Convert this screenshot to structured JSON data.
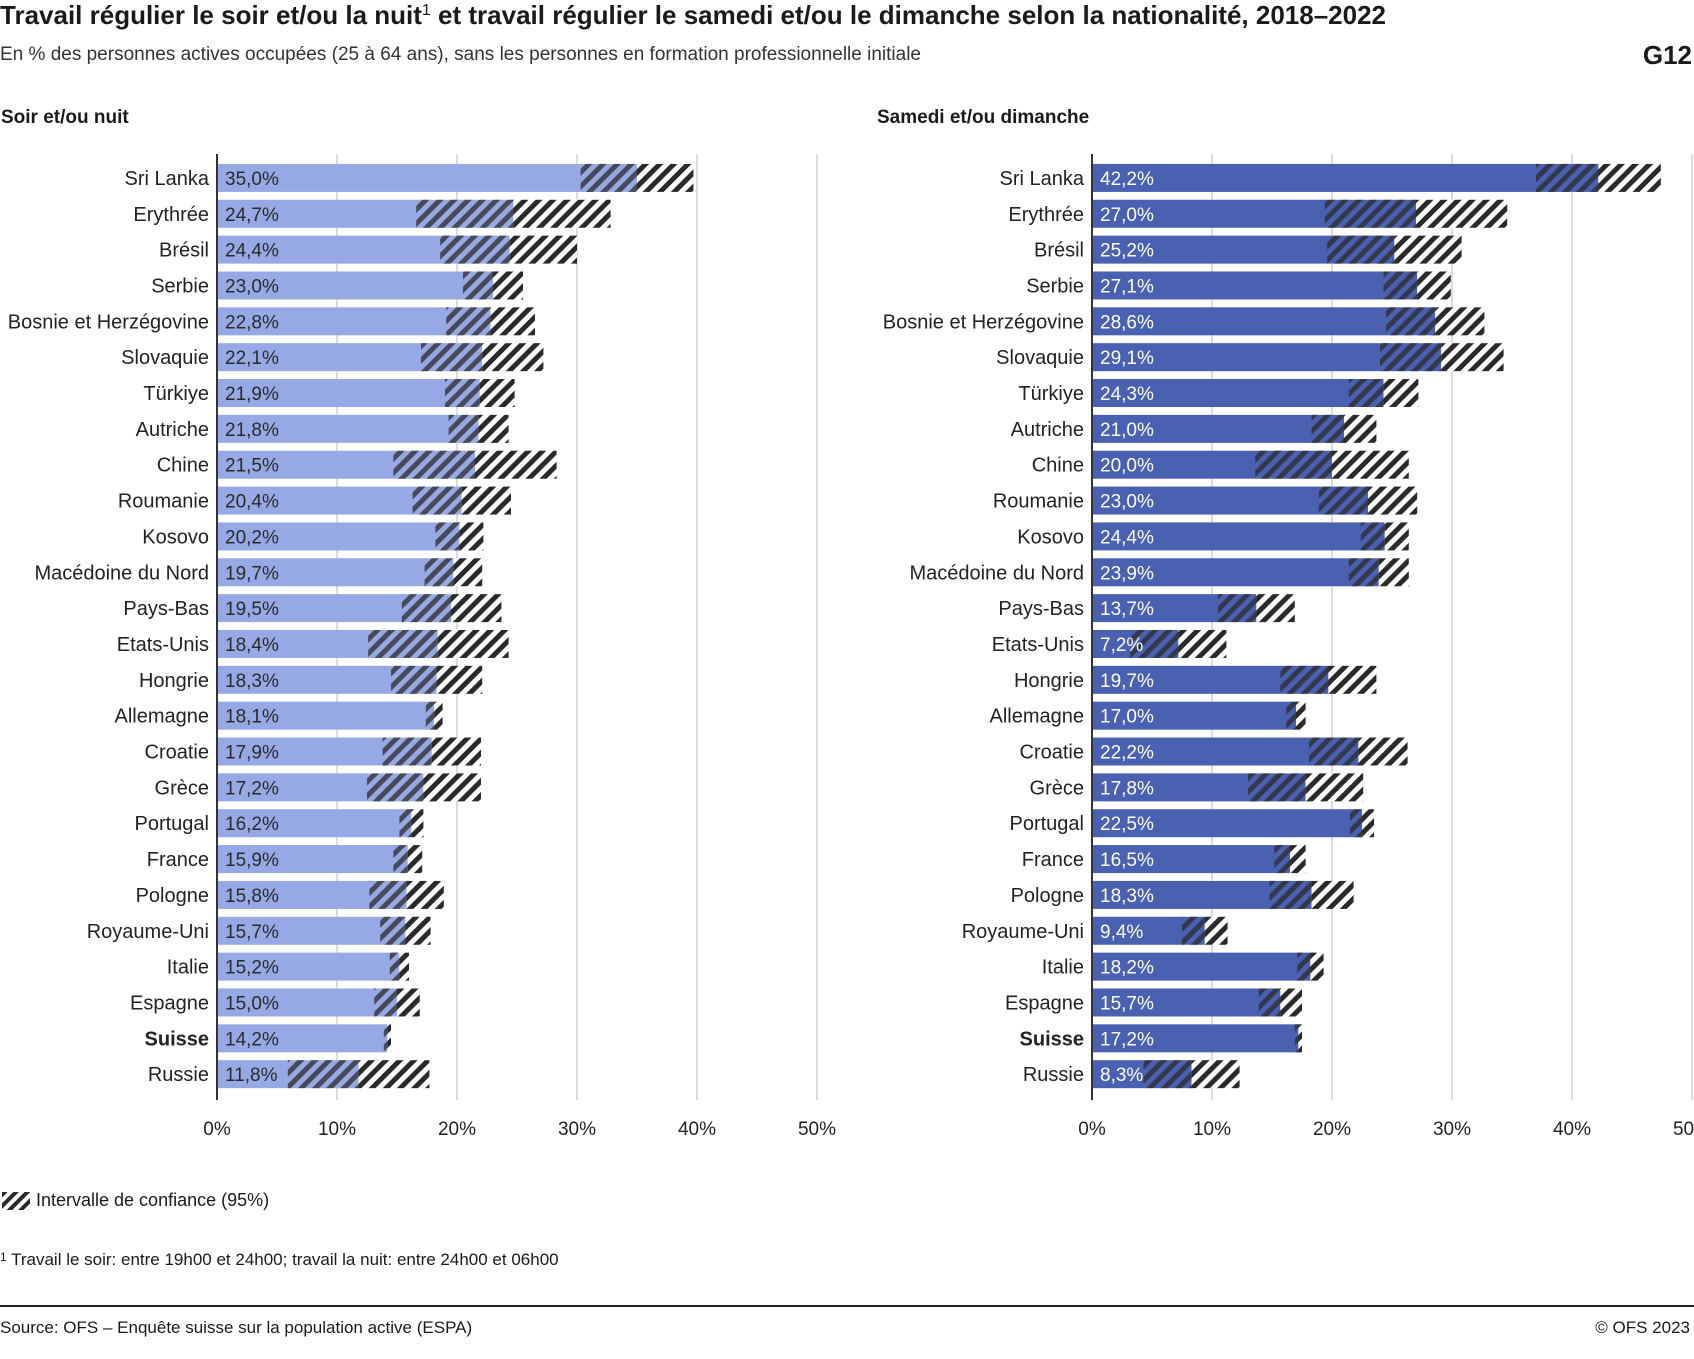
{
  "header": {
    "title": "Travail régulier le soir et/ou la nuit",
    "title_sup": "1",
    "title_rest": " et travail régulier le samedi et/ou le dimanche selon la nationalité, 2018–2022",
    "subtitle": "En % des personnes actives occupées (25 à 64 ans), sans les personnes en formation professionnelle initiale",
    "code": "G12"
  },
  "legend": {
    "label": "Intervalle de confiance (95%)"
  },
  "footnote": {
    "marker": "1",
    "text": " Travail le soir: entre 19h00 et 24h00; travail la nuit: entre 24h00 et 06h00"
  },
  "footer": {
    "source": "Source: OFS – Enquête suisse sur la population active (ESPA)",
    "copyright": "© OFS 2023"
  },
  "colors": {
    "left_bar": "#97a9e4",
    "right_bar": "#4a60b0",
    "hatch_dark": "#2a2a2a",
    "grid": "#d0d0d0"
  },
  "chart_data": [
    {
      "type": "bar",
      "orientation": "horizontal",
      "title": "Soir et/ou nuit",
      "categories": [
        "Sri Lanka",
        "Erythrée",
        "Brésil",
        "Serbie",
        "Bosnie et Herzégovine",
        "Slovaquie",
        "Türkiye",
        "Autriche",
        "Chine",
        "Roumanie",
        "Kosovo",
        "Macédoine du Nord",
        "Pays-Bas",
        "Etats-Unis",
        "Hongrie",
        "Allemagne",
        "Croatie",
        "Grèce",
        "Portugal",
        "France",
        "Pologne",
        "Royaume-Uni",
        "Italie",
        "Espagne",
        "Suisse",
        "Russie"
      ],
      "highlight": "Suisse",
      "values": [
        35.0,
        24.7,
        24.4,
        23.0,
        22.8,
        22.1,
        21.9,
        21.8,
        21.5,
        20.4,
        20.2,
        19.7,
        19.5,
        18.4,
        18.3,
        18.1,
        17.9,
        17.2,
        16.2,
        15.9,
        15.8,
        15.7,
        15.2,
        15.0,
        14.2,
        11.8
      ],
      "value_labels": [
        "35,0%",
        "24,7%",
        "24,4%",
        "23,0%",
        "22,8%",
        "22,1%",
        "21,9%",
        "21,8%",
        "21,5%",
        "20,4%",
        "20,2%",
        "19,7%",
        "19,5%",
        "18,4%",
        "18,3%",
        "18,1%",
        "17,9%",
        "17,2%",
        "16,2%",
        "15,9%",
        "15,8%",
        "15,7%",
        "15,2%",
        "15,0%",
        "14,2%",
        "11,8%"
      ],
      "ci_low": [
        30.3,
        16.6,
        18.6,
        20.5,
        19.1,
        17.0,
        19.0,
        19.3,
        14.7,
        16.3,
        18.2,
        17.3,
        15.4,
        12.6,
        14.5,
        17.4,
        13.8,
        12.5,
        15.2,
        14.7,
        12.7,
        13.6,
        14.4,
        13.1,
        13.9,
        5.9
      ],
      "ci_high": [
        39.7,
        32.8,
        30.0,
        25.5,
        26.5,
        27.2,
        24.8,
        24.3,
        28.3,
        24.5,
        22.2,
        22.1,
        23.7,
        24.3,
        22.1,
        18.8,
        22.0,
        22.0,
        17.2,
        17.1,
        18.9,
        17.8,
        16.0,
        16.9,
        14.5,
        17.7
      ],
      "xlim": [
        0,
        50
      ],
      "xticks": [
        "0%",
        "10%",
        "20%",
        "30%",
        "40%",
        "50%"
      ]
    },
    {
      "type": "bar",
      "orientation": "horizontal",
      "title": "Samedi et/ou dimanche",
      "categories": [
        "Sri Lanka",
        "Erythrée",
        "Brésil",
        "Serbie",
        "Bosnie et Herzégovine",
        "Slovaquie",
        "Türkiye",
        "Autriche",
        "Chine",
        "Roumanie",
        "Kosovo",
        "Macédoine du Nord",
        "Pays-Bas",
        "Etats-Unis",
        "Hongrie",
        "Allemagne",
        "Croatie",
        "Grèce",
        "Portugal",
        "France",
        "Pologne",
        "Royaume-Uni",
        "Italie",
        "Espagne",
        "Suisse",
        "Russie"
      ],
      "highlight": "Suisse",
      "values": [
        42.2,
        27.0,
        25.2,
        27.1,
        28.6,
        29.1,
        24.3,
        21.0,
        20.0,
        23.0,
        24.4,
        23.9,
        13.7,
        7.2,
        19.7,
        17.0,
        22.2,
        17.8,
        22.5,
        16.5,
        18.3,
        9.4,
        18.2,
        15.7,
        17.2,
        8.3
      ],
      "value_labels": [
        "42,2%",
        "27,0%",
        "25,2%",
        "27,1%",
        "28,6%",
        "29,1%",
        "24,3%",
        "21,0%",
        "20,0%",
        "23,0%",
        "24,4%",
        "23,9%",
        "13,7%",
        "7,2%",
        "19,7%",
        "17,0%",
        "22,2%",
        "17,8%",
        "22,5%",
        "16,5%",
        "18,3%",
        "9,4%",
        "18,2%",
        "15,7%",
        "17,2%",
        "8,3%"
      ],
      "ci_low": [
        37.0,
        19.4,
        19.6,
        24.3,
        24.5,
        24.0,
        21.4,
        18.3,
        13.6,
        18.9,
        22.4,
        21.4,
        10.5,
        3.2,
        15.7,
        16.2,
        18.1,
        13.0,
        21.5,
        15.2,
        14.8,
        7.5,
        17.1,
        13.9,
        16.9,
        4.3
      ],
      "ci_high": [
        47.4,
        34.6,
        30.8,
        29.9,
        32.7,
        34.3,
        27.2,
        23.7,
        26.4,
        27.1,
        26.4,
        26.4,
        16.9,
        11.2,
        23.7,
        17.8,
        26.3,
        22.6,
        23.5,
        17.8,
        21.8,
        11.3,
        19.3,
        17.5,
        17.5,
        12.3
      ],
      "xlim": [
        0,
        50
      ],
      "xticks": [
        "0%",
        "10%",
        "20%",
        "30%",
        "40%",
        "50%"
      ]
    }
  ]
}
